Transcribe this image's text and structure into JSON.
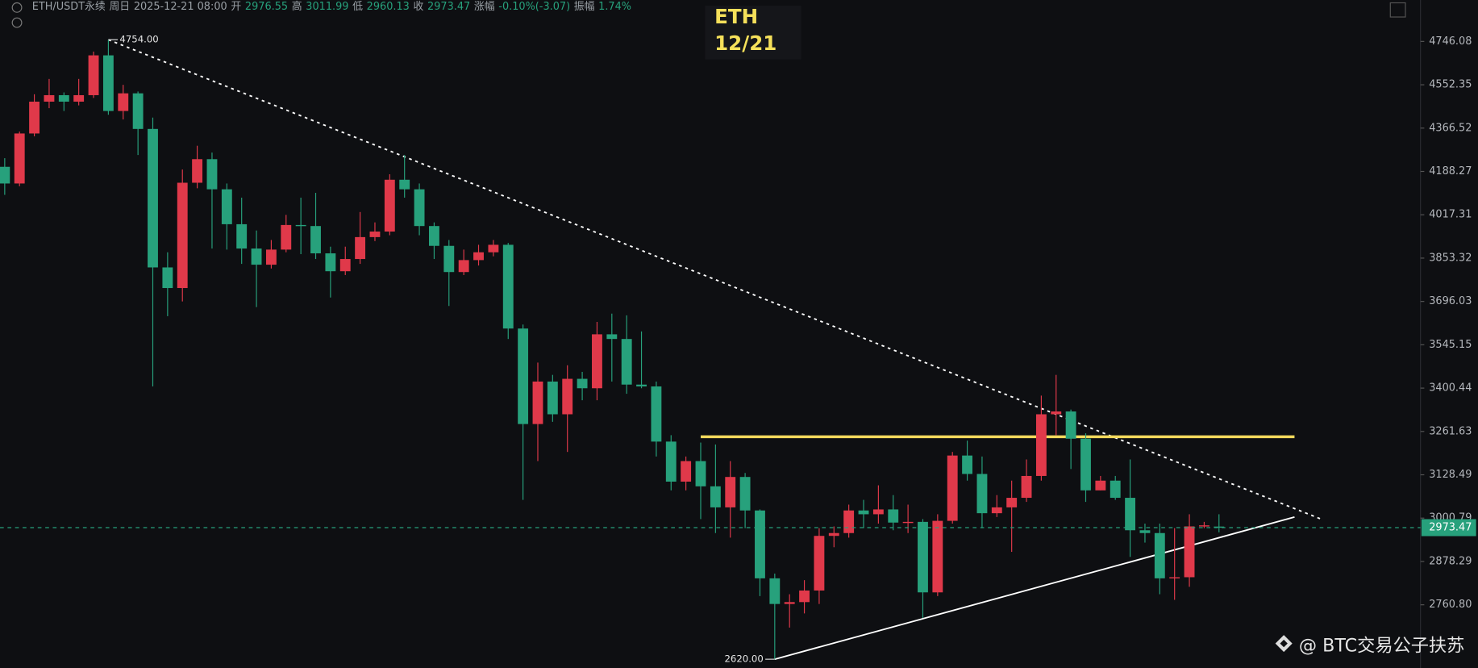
{
  "header": {
    "symbol": "ETH/USDT永续",
    "day": "周日",
    "time": "2025-12-21 08:00",
    "fields": [
      {
        "label": "开",
        "value": "2976.55"
      },
      {
        "label": "高",
        "value": "3011.99"
      },
      {
        "label": "低",
        "value": "2960.13"
      },
      {
        "label": "收",
        "value": "2973.47"
      },
      {
        "label": "涨幅",
        "value": "-0.10%(-3.07)"
      },
      {
        "label": "振幅",
        "value": "1.74%"
      }
    ]
  },
  "chart_data": {
    "type": "candlestick",
    "title": "ETH",
    "subtitle": "12/21",
    "watermark": "@ BTC交易公子扶苏",
    "log_scale": true,
    "up_color": "#e0394a",
    "down_color": "#27a17c",
    "price_line_color": "#27a17c",
    "ylim": [
      2598,
      4939
    ],
    "yticks": [
      4746.08,
      4552.35,
      4366.52,
      4188.27,
      4017.31,
      3853.32,
      3696.03,
      3545.15,
      3400.44,
      3261.63,
      3128.49,
      3000.79,
      2878.29,
      {
        "value": 2760.8,
        "label": "2760.80"
      }
    ],
    "open": [
      4207,
      4140,
      4344,
      4479,
      4507,
      4479,
      4507,
      4683,
      4439,
      4515,
      4363,
      3819,
      3744,
      4143,
      4238,
      4117,
      3981,
      3889,
      3829,
      3885,
      3978,
      3974,
      3871,
      3805,
      3850,
      3932,
      3953,
      4155,
      4117,
      3974,
      3899,
      3802,
      3846,
      3875,
      3903,
      3601,
      3285,
      3422,
      3316,
      3431,
      3400,
      3581,
      3565,
      3412,
      3406,
      3230,
      3108,
      3170,
      3094,
      3032,
      3122,
      3023,
      2832,
      2763,
      2768,
      2799,
      2950,
      2958,
      3023,
      3012,
      3026,
      2988,
      2990,
      2794,
      2993,
      3187,
      3131,
      3015,
      3032,
      3060,
      3125,
      3316,
      3325,
      3239,
      3082,
      3111,
      3060,
      2966,
      2958,
      2832,
      2835,
      2977,
      2976.55
    ],
    "close": [
      4140,
      4344,
      4479,
      4507,
      4479,
      4507,
      4683,
      4439,
      4515,
      4363,
      3819,
      3744,
      4143,
      4238,
      4117,
      3981,
      3889,
      3829,
      3885,
      3978,
      3974,
      3871,
      3805,
      3850,
      3932,
      3953,
      4155,
      4117,
      3974,
      3899,
      3802,
      3846,
      3875,
      3903,
      3601,
      3285,
      3422,
      3316,
      3431,
      3400,
      3581,
      3565,
      3412,
      3406,
      3230,
      3108,
      3170,
      3094,
      3032,
      3122,
      3023,
      2832,
      2763,
      2768,
      2799,
      2950,
      2958,
      3023,
      3012,
      3026,
      2988,
      2990,
      2794,
      2993,
      3187,
      3131,
      3015,
      3032,
      3060,
      3125,
      3316,
      3325,
      3239,
      3082,
      3111,
      3060,
      2966,
      2958,
      2832,
      2835,
      2977,
      2980,
      2973.47
    ],
    "high": [
      4242,
      4352,
      4511,
      4578,
      4519,
      4578,
      4700,
      4754,
      4552,
      4523,
      4411,
      3875,
      4196,
      4293,
      4265,
      4140,
      4084,
      3957,
      3921,
      4017,
      4084,
      4103,
      3896,
      3896,
      4028,
      3988,
      4177,
      4255,
      4140,
      3988,
      3921,
      3885,
      3903,
      3921,
      3910,
      3615,
      3485,
      3444,
      3476,
      3454,
      3624,
      3653,
      3647,
      3591,
      3422,
      3250,
      3184,
      3227,
      3221,
      3170,
      3134,
      3026,
      2845,
      2789,
      2827,
      2972,
      2977,
      3040,
      3054,
      3097,
      3068,
      3040,
      2998,
      3012,
      3198,
      3233,
      3184,
      3068,
      3111,
      3175,
      3376,
      3444,
      3331,
      3256,
      3125,
      3125,
      3175,
      2985,
      2985,
      2972,
      3012,
      2990,
      3011.99
    ],
    "low": [
      4095,
      4129,
      4332,
      4451,
      4439,
      4463,
      4495,
      4423,
      4403,
      4255,
      3406,
      3644,
      3696,
      4121,
      3889,
      3885,
      3832,
      3676,
      3815,
      3875,
      3868,
      3850,
      3710,
      3791,
      3832,
      3917,
      3939,
      4084,
      3939,
      3850,
      3680,
      3791,
      3826,
      3860,
      3565,
      3054,
      3170,
      3292,
      3198,
      3361,
      3361,
      3422,
      3382,
      3400,
      3184,
      3082,
      3082,
      2998,
      2958,
      2945,
      2972,
      2784,
      2620,
      2701,
      2738,
      2763,
      2918,
      2945,
      2972,
      2985,
      2966,
      2958,
      2726,
      2784,
      2985,
      3111,
      2972,
      3004,
      2905,
      3048,
      3111,
      3250,
      3146,
      3048,
      3082,
      3054,
      2891,
      2931,
      2789,
      2774,
      2809,
      2972,
      2960.13
    ],
    "annotations": [
      {
        "index": 7,
        "value": 4754,
        "label": "4754.00"
      },
      {
        "index": 52,
        "value": 2620,
        "label": "2620.00"
      }
    ],
    "trendlines": [
      {
        "start": [
          7,
          4754
        ],
        "end": [
          88.9,
          2998
        ],
        "color": "#ffffff",
        "style": "dotted"
      },
      {
        "start": [
          47,
          3245
        ],
        "end": [
          87.1,
          3245
        ],
        "color": "#f3d95c",
        "style": "solid"
      },
      {
        "start": [
          52,
          2620
        ],
        "end": [
          87.1,
          3004
        ],
        "color": "#ffffff",
        "style": "solid"
      }
    ]
  }
}
